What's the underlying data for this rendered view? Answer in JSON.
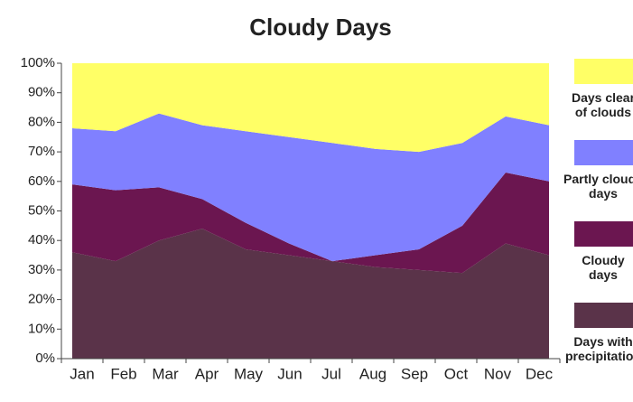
{
  "chart_data": {
    "type": "stacked_area",
    "title": "Cloudy Days",
    "categories": [
      "Jan",
      "Feb",
      "Mar",
      "Apr",
      "May",
      "Jun",
      "Jul",
      "Aug",
      "Sep",
      "Oct",
      "Nov",
      "Dec"
    ],
    "series": [
      {
        "name": "Days with precipitation",
        "color": "#5a3349",
        "values": [
          36,
          33,
          40,
          44,
          37,
          35,
          33,
          31,
          30,
          29,
          39,
          35
        ]
      },
      {
        "name": "Cloudy days",
        "color": "#6b1650",
        "values": [
          23,
          24,
          18,
          10,
          9,
          4,
          0,
          4,
          7,
          16,
          24,
          25
        ]
      },
      {
        "name": "Partly cloudy days",
        "color": "#8080ff",
        "values": [
          19,
          20,
          25,
          25,
          31,
          36,
          40,
          36,
          33,
          28,
          19,
          19
        ]
      },
      {
        "name": "Days clear of clouds",
        "color": "#ffff66",
        "values": [
          22,
          23,
          17,
          21,
          23,
          25,
          27,
          29,
          30,
          27,
          18,
          21
        ]
      }
    ],
    "ylim": [
      0,
      100
    ],
    "yticks": [
      {
        "value": 0,
        "label": "0%"
      },
      {
        "value": 10,
        "label": "10%"
      },
      {
        "value": 20,
        "label": "20%"
      },
      {
        "value": 30,
        "label": "30%"
      },
      {
        "value": 40,
        "label": "40%"
      },
      {
        "value": 50,
        "label": "50%"
      },
      {
        "value": 60,
        "label": "60%"
      },
      {
        "value": 70,
        "label": "70%"
      },
      {
        "value": 80,
        "label": "80%"
      },
      {
        "value": 90,
        "label": "90%"
      },
      {
        "value": 100,
        "label": "100%"
      }
    ],
    "legend": "right"
  }
}
